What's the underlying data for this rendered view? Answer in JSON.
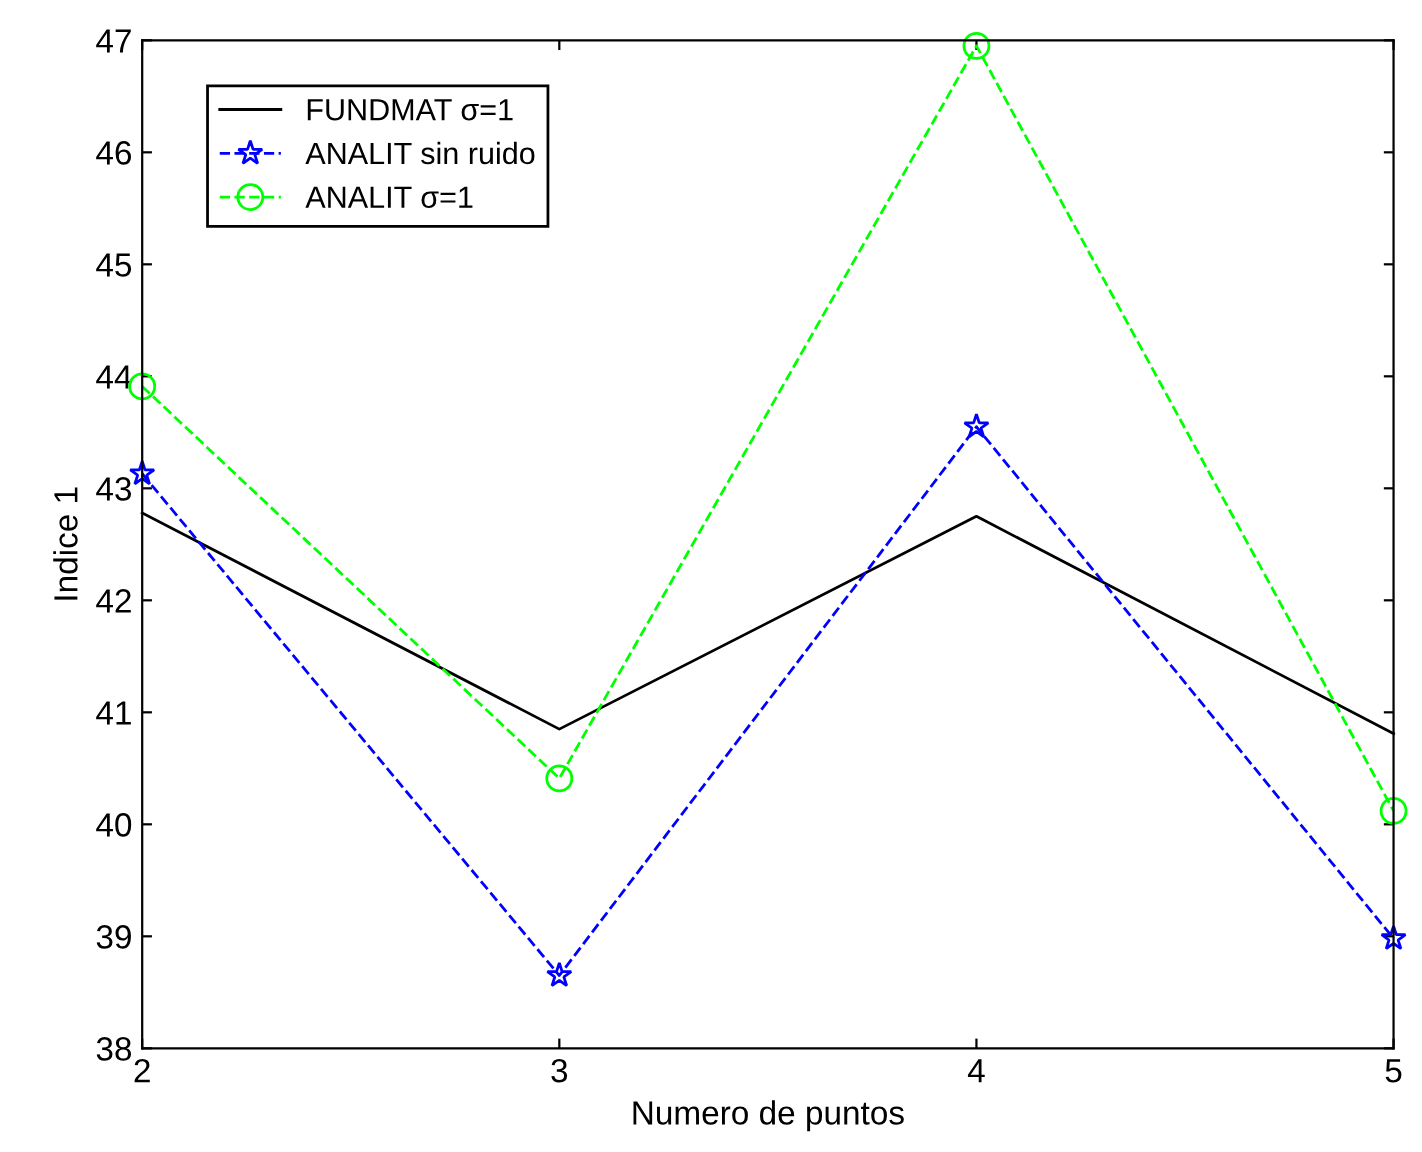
{
  "chart_data": {
    "type": "line",
    "xlabel": "Numero de puntos",
    "ylabel": "Indice 1",
    "x": [
      2,
      3,
      4,
      5
    ],
    "series": [
      {
        "name": "FUNDMAT σ=1",
        "color": "#000000",
        "values": [
          42.78,
          40.85,
          42.75,
          40.81
        ],
        "marker": "none",
        "line_style": "solid"
      },
      {
        "name": "ANALIT sin ruido",
        "color": "#0000ff",
        "values": [
          43.13,
          38.65,
          43.55,
          38.98
        ],
        "marker": "star",
        "line_style": "dashed"
      },
      {
        "name": "ANALIT σ=1",
        "color": "#00ff00",
        "values": [
          43.91,
          40.41,
          46.95,
          40.12
        ],
        "marker": "circle",
        "line_style": "dashed"
      }
    ],
    "xlim": [
      2,
      5
    ],
    "xticks": [
      2,
      3,
      4,
      5
    ],
    "ylim": [
      38,
      47
    ],
    "yticks": [
      38,
      39,
      40,
      41,
      42,
      43,
      44,
      45,
      46,
      47
    ],
    "grid": false,
    "legend": "top left"
  }
}
